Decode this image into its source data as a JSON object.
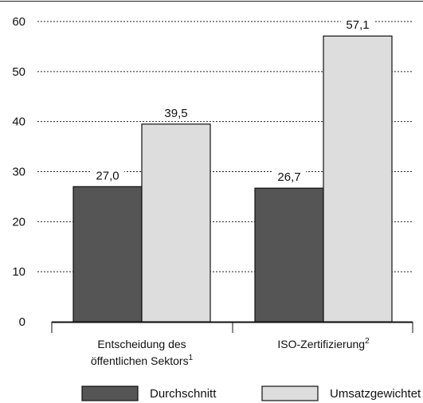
{
  "chart_data": {
    "type": "bar",
    "title": "",
    "xlabel": "",
    "ylabel": "",
    "ylim": [
      0,
      60
    ],
    "yticks": [
      0,
      10,
      20,
      30,
      40,
      50,
      60
    ],
    "grid": true,
    "legend_placement": "bottom",
    "categories": [
      {
        "line1": "Entscheidung des",
        "line2": "öffentlichen Sektors",
        "sup": "1"
      },
      {
        "line1": "ISO-Zertifizierung",
        "line2": "",
        "sup": "2"
      }
    ],
    "series": [
      {
        "name": "Durchschnitt",
        "color": "#555555",
        "values": [
          27.0,
          26.7
        ],
        "labels": [
          "27,0",
          "26,7"
        ]
      },
      {
        "name": "Umsatzgewichtet",
        "color": "#dddddd",
        "values": [
          39.5,
          57.1
        ],
        "labels": [
          "39,5",
          "57,1"
        ]
      }
    ]
  }
}
